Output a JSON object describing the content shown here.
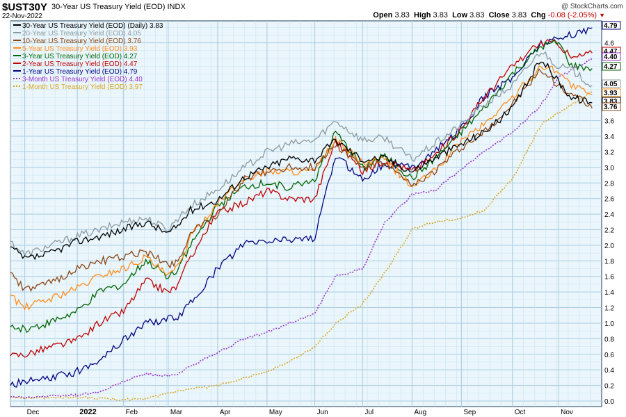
{
  "header": {
    "symbol": "$UST30Y",
    "description": "30-Year US Treasury Yield (EOD)",
    "exchange": "INDX",
    "date": "22-Nov-2022",
    "credit": "@ StockCharts.com",
    "open_label": "Open",
    "open": "3.83",
    "high_label": "High",
    "high": "3.83",
    "low_label": "Low",
    "low": "3.83",
    "close_label": "Close",
    "close": "3.83",
    "chg_label": "Chg",
    "chg": "-0.08 (-2.05%)"
  },
  "chart_data": {
    "type": "line",
    "ylim": [
      0,
      4.9
    ],
    "y_ticks": [
      0.0,
      0.2,
      0.4,
      0.6,
      0.8,
      1.0,
      1.2,
      1.4,
      1.6,
      1.8,
      2.0,
      2.2,
      2.4,
      2.6,
      2.8,
      3.0,
      3.2,
      3.4,
      3.6,
      4.6
    ],
    "x_ticks": [
      "Dec",
      "2022",
      "Feb",
      "Mar",
      "Apr",
      "May",
      "Jun",
      "Jul",
      "Aug",
      "Sep",
      "Oct",
      "Nov"
    ],
    "x_tick_dates": [
      "2021-12-01",
      "2022-01-03",
      "2022-02-01",
      "2022-03-01",
      "2022-04-01",
      "2022-05-02",
      "2022-06-01",
      "2022-07-01",
      "2022-08-01",
      "2022-09-01",
      "2022-10-03",
      "2022-11-01"
    ],
    "x_range": [
      "2021-11-22",
      "2022-11-28"
    ],
    "grid": true,
    "legend_position": "top-left",
    "dates": [
      "2021-11-22",
      "2021-12-01",
      "2021-12-15",
      "2022-01-03",
      "2022-01-18",
      "2022-02-01",
      "2022-02-15",
      "2022-03-01",
      "2022-03-07",
      "2022-03-15",
      "2022-04-01",
      "2022-04-18",
      "2022-05-02",
      "2022-05-16",
      "2022-06-01",
      "2022-06-14",
      "2022-07-01",
      "2022-07-15",
      "2022-08-01",
      "2022-08-15",
      "2022-09-01",
      "2022-09-15",
      "2022-10-03",
      "2022-10-21",
      "2022-11-01",
      "2022-11-09",
      "2022-11-22"
    ],
    "series": [
      {
        "name": "30-Year US Treasury Yield (EOD) (Daily)",
        "last": "3.83",
        "color": "#000000",
        "dotted": false,
        "values": [
          1.98,
          1.82,
          1.88,
          2.05,
          2.12,
          2.2,
          2.3,
          2.15,
          2.25,
          2.45,
          2.58,
          2.88,
          3.0,
          3.12,
          3.1,
          3.35,
          3.1,
          3.12,
          2.95,
          3.12,
          3.3,
          3.45,
          3.75,
          4.4,
          4.1,
          3.9,
          3.83
        ]
      },
      {
        "name": "20-Year US Treasury Yield (EOD)",
        "last": "4.05",
        "color": "#8a9aa0",
        "dotted": false,
        "values": [
          2.05,
          1.88,
          1.98,
          2.12,
          2.2,
          2.3,
          2.35,
          2.2,
          2.35,
          2.5,
          2.72,
          3.0,
          3.2,
          3.3,
          3.35,
          3.6,
          3.35,
          3.38,
          3.1,
          3.3,
          3.55,
          3.8,
          4.05,
          4.5,
          4.3,
          4.25,
          4.05
        ]
      },
      {
        "name": "10-Year US Treasury Yield (EOD)",
        "last": "3.76",
        "color": "#8b4513",
        "dotted": false,
        "values": [
          1.65,
          1.42,
          1.5,
          1.7,
          1.8,
          1.85,
          1.92,
          1.75,
          1.8,
          2.15,
          2.4,
          2.85,
          2.95,
          3.0,
          3.0,
          3.3,
          3.0,
          3.05,
          2.75,
          2.95,
          3.25,
          3.45,
          3.8,
          4.25,
          4.05,
          3.95,
          3.76
        ]
      },
      {
        "name": "5-Year US Treasury Yield (EOD)",
        "last": "3.93",
        "color": "#ff8c1a",
        "dotted": false,
        "values": [
          1.35,
          1.2,
          1.3,
          1.45,
          1.62,
          1.7,
          1.85,
          1.6,
          1.72,
          2.1,
          2.55,
          2.85,
          2.95,
          2.95,
          2.95,
          3.35,
          3.05,
          3.1,
          2.75,
          2.95,
          3.35,
          3.55,
          3.9,
          4.3,
          4.25,
          4.05,
          3.93
        ]
      },
      {
        "name": "3-Year US Treasury Yield (EOD)",
        "last": "4.27",
        "color": "#006400",
        "dotted": false,
        "values": [
          0.95,
          0.92,
          1.0,
          1.15,
          1.42,
          1.5,
          1.8,
          1.6,
          1.7,
          2.0,
          2.5,
          2.75,
          2.8,
          2.75,
          2.85,
          3.45,
          3.0,
          3.15,
          2.85,
          3.1,
          3.45,
          3.75,
          4.2,
          4.55,
          4.6,
          4.3,
          4.27
        ]
      },
      {
        "name": "2-Year US Treasury Yield (EOD)",
        "last": "4.47",
        "color": "#c00000",
        "dotted": false,
        "values": [
          0.58,
          0.6,
          0.68,
          0.78,
          1.02,
          1.15,
          1.55,
          1.4,
          1.48,
          1.85,
          2.42,
          2.55,
          2.7,
          2.6,
          2.6,
          3.35,
          2.95,
          3.1,
          2.95,
          3.15,
          3.5,
          3.9,
          4.3,
          4.6,
          4.6,
          4.4,
          4.47
        ]
      },
      {
        "name": "1-Year US Treasury Yield (EOD)",
        "last": "4.79",
        "color": "#000080",
        "dotted": false,
        "values": [
          0.2,
          0.25,
          0.28,
          0.38,
          0.55,
          0.78,
          1.0,
          1.05,
          1.08,
          1.25,
          1.7,
          2.02,
          2.05,
          2.08,
          2.1,
          3.15,
          2.85,
          3.05,
          3.0,
          3.2,
          3.5,
          3.9,
          4.15,
          4.6,
          4.65,
          4.7,
          4.79
        ]
      },
      {
        "name": "3-Month US Treasury Yield (EOD)",
        "last": "4.40",
        "color": "#9932cc",
        "dotted": true,
        "values": [
          0.05,
          0.05,
          0.06,
          0.08,
          0.12,
          0.25,
          0.35,
          0.32,
          0.34,
          0.45,
          0.62,
          0.8,
          0.88,
          1.0,
          1.12,
          1.6,
          1.7,
          2.3,
          2.65,
          2.7,
          2.98,
          3.2,
          3.45,
          3.8,
          4.15,
          4.25,
          4.4
        ]
      },
      {
        "name": "1-Month US Treasury Yield (EOD)",
        "last": "3.97",
        "color": "#daa520",
        "dotted": true,
        "values": [
          0.05,
          0.04,
          0.04,
          0.05,
          0.03,
          0.02,
          0.02,
          0.1,
          0.12,
          0.15,
          0.2,
          0.3,
          0.38,
          0.5,
          0.7,
          1.0,
          1.25,
          1.65,
          2.2,
          2.3,
          2.35,
          2.45,
          2.85,
          3.55,
          3.7,
          3.8,
          3.97
        ]
      }
    ],
    "price_labels": [
      "4.79",
      "4.47",
      "4.40",
      "4.27",
      "4.05",
      "3.93",
      "3.83",
      "3.76"
    ]
  }
}
